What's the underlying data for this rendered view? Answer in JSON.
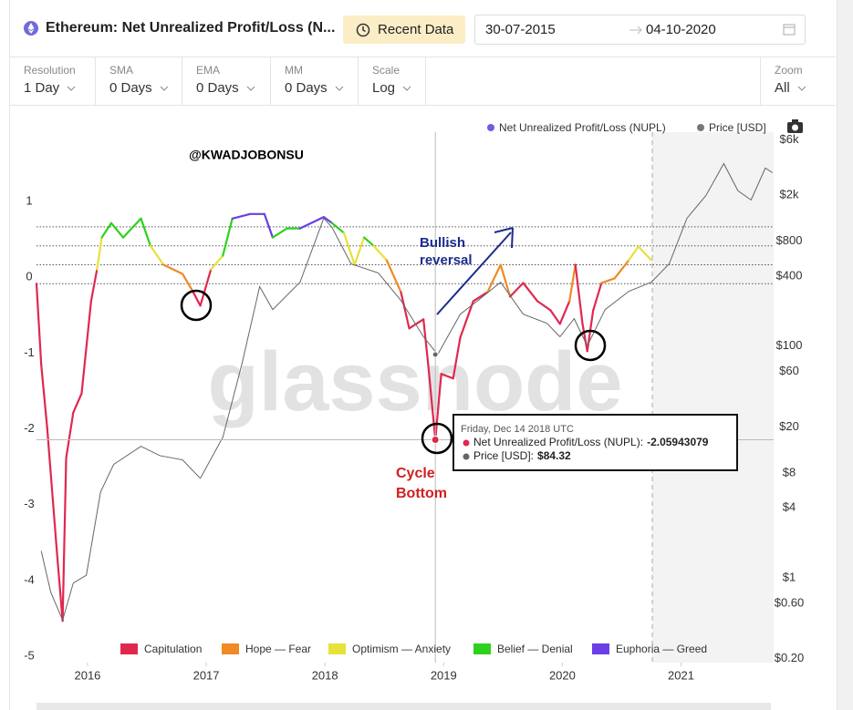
{
  "toolbar": {
    "title": "Ethereum: Net Unrealized Profit/Loss (N...",
    "recent": "Recent Data",
    "date_from": "30-07-2015",
    "date_to": "04-10-2020",
    "controls": [
      {
        "label": "Resolution",
        "value": "1 Day"
      },
      {
        "label": "SMA",
        "value": "0 Days"
      },
      {
        "label": "EMA",
        "value": "0 Days"
      },
      {
        "label": "MM",
        "value": "0 Days"
      },
      {
        "label": "Scale",
        "value": "Log"
      }
    ],
    "zoom": {
      "label": "Zoom",
      "value": "All"
    }
  },
  "chart_data": {
    "type": "line",
    "xlim": [
      2015.57,
      2021.78
    ],
    "xticks": [
      2016,
      2017,
      2018,
      2019,
      2020,
      2021
    ],
    "ylim": [
      -5,
      2
    ],
    "yticks": [
      1,
      0,
      -1,
      -2,
      -3,
      -4,
      -5
    ],
    "y2lim": [
      0.185,
      7000
    ],
    "y2scale": "log",
    "y2ticks": [
      {
        "value": 6000,
        "label": "$6k"
      },
      {
        "value": 2000,
        "label": "$2k"
      },
      {
        "value": 800,
        "label": "$800"
      },
      {
        "value": 400,
        "label": "$400"
      },
      {
        "value": 100,
        "label": "$100"
      },
      {
        "value": 60,
        "label": "$60"
      },
      {
        "value": 20,
        "label": "$20"
      },
      {
        "value": 8,
        "label": "$8"
      },
      {
        "value": 4,
        "label": "$4"
      },
      {
        "value": 1,
        "label": "$1"
      },
      {
        "value": 0.6,
        "label": "$0.60"
      },
      {
        "value": 0.2,
        "label": "$0.20"
      }
    ],
    "legend_position": "top-right",
    "zone_bounds": [
      0,
      0.25,
      0.5,
      0.75
    ],
    "zones": [
      {
        "name": "Capitulation",
        "color": "#e0284f"
      },
      {
        "name": "Hope — Fear",
        "color": "#ef8a24"
      },
      {
        "name": "Optimism — Anxiety",
        "color": "#e6e23a"
      },
      {
        "name": "Belief — Denial",
        "color": "#2dd21d"
      },
      {
        "name": "Euphoria — Greed",
        "color": "#6b3ee6"
      }
    ],
    "series": [
      {
        "name": "Net Unrealized Profit/Loss (NUPL)",
        "color": "#6f5de0",
        "x": [
          2015.57,
          2015.61,
          2015.66,
          2015.74,
          2015.79,
          2015.82,
          2015.88,
          2015.95,
          2016.03,
          2016.08,
          2016.12,
          2016.2,
          2016.3,
          2016.45,
          2016.53,
          2016.64,
          2016.8,
          2016.89,
          2016.95,
          2017.04,
          2017.14,
          2017.22,
          2017.37,
          2017.49,
          2017.56,
          2017.68,
          2017.79,
          2017.99,
          2018.06,
          2018.16,
          2018.25,
          2018.33,
          2018.41,
          2018.52,
          2018.64,
          2018.71,
          2018.83,
          2018.87,
          2018.93,
          2018.98,
          2019.08,
          2019.14,
          2019.25,
          2019.37,
          2019.48,
          2019.56,
          2019.67,
          2019.79,
          2019.9,
          2019.98,
          2020.06,
          2020.11,
          2020.17,
          2020.21,
          2020.26,
          2020.33,
          2020.44,
          2020.56,
          2020.64,
          2020.75
        ],
        "values": [
          0,
          -1.07,
          -1.9,
          -3.5,
          -4.45,
          -2.3,
          -1.7,
          -1.45,
          -0.23,
          0.19,
          0.61,
          0.8,
          0.61,
          0.86,
          0.5,
          0.25,
          0.13,
          -0.11,
          -0.29,
          0.19,
          0.37,
          0.86,
          0.92,
          0.92,
          0.61,
          0.73,
          0.73,
          0.88,
          0.8,
          0.67,
          0.25,
          0.61,
          0.5,
          0.31,
          -0.11,
          -0.59,
          -0.47,
          -1.07,
          -2.06,
          -1.19,
          -1.25,
          -0.71,
          -0.23,
          -0.11,
          0.25,
          -0.17,
          0.01,
          -0.23,
          -0.35,
          -0.53,
          -0.23,
          0.25,
          -0.53,
          -0.89,
          -0.35,
          0.01,
          0.07,
          0.31,
          0.49,
          0.31
        ]
      },
      {
        "name": "Price [USD]",
        "color": "#777777",
        "axis": "y2",
        "x": [
          2015.61,
          2015.69,
          2015.79,
          2015.88,
          2015.99,
          2016.11,
          2016.22,
          2016.45,
          2016.61,
          2016.8,
          2016.95,
          2017.14,
          2017.3,
          2017.45,
          2017.56,
          2017.79,
          2017.99,
          2018.06,
          2018.22,
          2018.45,
          2018.64,
          2018.83,
          2018.95,
          2019.14,
          2019.29,
          2019.48,
          2019.67,
          2019.87,
          2019.98,
          2020.1,
          2020.21,
          2020.36,
          2020.56,
          2020.75,
          2020.9,
          2021.05,
          2021.21,
          2021.36,
          2021.48,
          2021.59,
          2021.71,
          2021.77
        ],
        "values": [
          1.7,
          0.75,
          0.43,
          0.9,
          1.05,
          5.5,
          9.5,
          13.6,
          11.3,
          10.4,
          7.2,
          16.3,
          69.5,
          325,
          206,
          355,
          1265,
          1054,
          511,
          426,
          247,
          120,
          84.32,
          188,
          247,
          355,
          188,
          157,
          120,
          172,
          100,
          206,
          296,
          355,
          511,
          1265,
          1990,
          3750,
          2180,
          1820,
          3430,
          3130
        ]
      }
    ],
    "annotations": [
      [
        "@KWADJOBONSU"
      ],
      [
        "Bullish",
        "reversal"
      ],
      [
        "Cycle",
        "Bottom"
      ]
    ],
    "watermark": "glassnode",
    "tooltip": {
      "date": "Friday, Dec 14 2018 UTC",
      "rows": [
        {
          "label": "Net Unrealized Profit/Loss (NUPL):",
          "value": -2.05943079
        },
        {
          "label": "Price [USD]:",
          "value": 84.32,
          "value_label": "$84.32"
        }
      ]
    }
  }
}
